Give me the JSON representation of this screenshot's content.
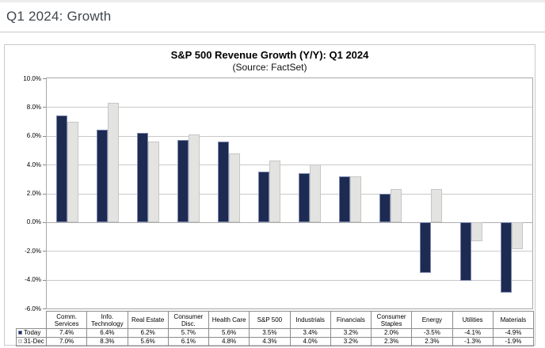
{
  "page": {
    "title": "Q1 2024: Growth"
  },
  "chart_data": {
    "type": "bar",
    "title": "S&P 500 Revenue Growth (Y/Y): Q1 2024",
    "subtitle": "(Source: FactSet)",
    "categories": [
      "Comm. Services",
      "Info. Technology",
      "Real Estate",
      "Consumer Disc.",
      "Health Care",
      "S&P 500",
      "Industrials",
      "Financials",
      "Consumer Staples",
      "Energy",
      "Utilities",
      "Materials"
    ],
    "series": [
      {
        "name": "Today",
        "color": "#1d2a52",
        "border_color": "#7d88ae",
        "values": [
          7.4,
          6.4,
          6.2,
          5.7,
          5.6,
          3.5,
          3.4,
          3.2,
          2.0,
          -3.5,
          -4.1,
          -4.9
        ]
      },
      {
        "name": "31-Dec",
        "color": "#e3e3e1",
        "border_color": "#c6c6c4",
        "values": [
          7.0,
          8.3,
          5.6,
          6.1,
          4.8,
          4.3,
          4.0,
          3.2,
          2.3,
          2.3,
          -1.3,
          -1.9
        ]
      }
    ],
    "ylim": [
      -6,
      10
    ],
    "ytick_step": 2,
    "ytick_labels": [
      "10.0%",
      "8.0%",
      "6.0%",
      "4.0%",
      "2.0%",
      "0.0%",
      "-2.0%",
      "-4.0%",
      "-6.0%"
    ],
    "grid": true,
    "gridline_color": "#c9c9c9",
    "zero_line_color": "#aeaeae",
    "frame_color": "#a8a8a8",
    "legend_position": "data-table-left",
    "value_suffix": "%"
  }
}
